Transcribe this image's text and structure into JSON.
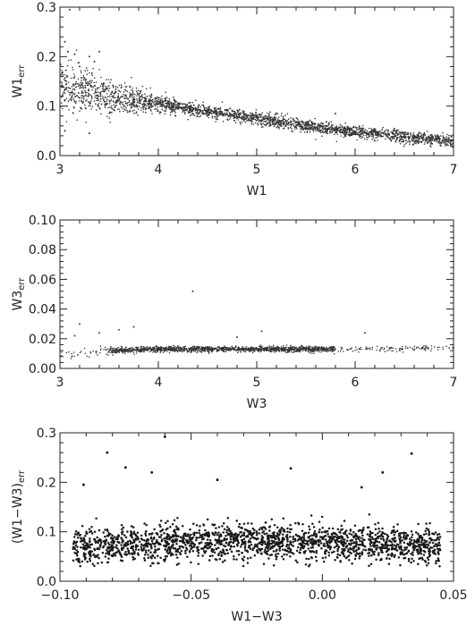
{
  "chart_data": [
    {
      "type": "scatter",
      "x_field": "W1",
      "y_field": "W1_err",
      "xlabel": "W1",
      "ylabel_main": "W1",
      "ylabel_sub": "err",
      "xlim": [
        3,
        7
      ],
      "ylim": [
        0.0,
        0.3
      ],
      "xticks": [
        3,
        4,
        5,
        6,
        7
      ],
      "yticks": [
        0.0,
        0.1,
        0.2,
        0.3
      ],
      "xtick_labels": [
        "3",
        "4",
        "5",
        "6",
        "7"
      ],
      "ytick_labels": [
        "0.0",
        "0.1",
        "0.2",
        "0.3"
      ],
      "grid": false,
      "trend": {
        "description": "dense band decreasing with W1",
        "points": [
          {
            "x": 3.0,
            "y": 0.14
          },
          {
            "x": 3.5,
            "y": 0.12
          },
          {
            "x": 4.0,
            "y": 0.105
          },
          {
            "x": 4.5,
            "y": 0.09
          },
          {
            "x": 5.0,
            "y": 0.075
          },
          {
            "x": 5.5,
            "y": 0.06
          },
          {
            "x": 6.0,
            "y": 0.048
          },
          {
            "x": 6.5,
            "y": 0.038
          },
          {
            "x": 7.0,
            "y": 0.03
          }
        ]
      },
      "notable_points": [
        {
          "x": 3.05,
          "y": 0.23
        },
        {
          "x": 3.08,
          "y": 0.21
        },
        {
          "x": 3.1,
          "y": 0.295
        },
        {
          "x": 3.15,
          "y": 0.205
        },
        {
          "x": 3.2,
          "y": 0.18
        },
        {
          "x": 3.3,
          "y": 0.2
        },
        {
          "x": 3.35,
          "y": 0.19
        },
        {
          "x": 3.4,
          "y": 0.21
        },
        {
          "x": 3.05,
          "y": 0.05
        },
        {
          "x": 3.3,
          "y": 0.045
        },
        {
          "x": 5.8,
          "y": 0.085
        }
      ]
    },
    {
      "type": "scatter",
      "x_field": "W3",
      "y_field": "W3_err",
      "xlabel": "W3",
      "ylabel_main": "W3",
      "ylabel_sub": "err",
      "xlim": [
        3,
        7
      ],
      "ylim": [
        0.0,
        0.1
      ],
      "xticks": [
        3,
        4,
        5,
        6,
        7
      ],
      "yticks": [
        0.0,
        0.02,
        0.04,
        0.06,
        0.08,
        0.1
      ],
      "xtick_labels": [
        "3",
        "4",
        "5",
        "6",
        "7"
      ],
      "ytick_labels": [
        "0.00",
        "0.02",
        "0.04",
        "0.06",
        "0.08",
        "0.10"
      ],
      "grid": false,
      "trend": {
        "description": "flat band near 0.013",
        "points": [
          {
            "x": 3.0,
            "y": 0.009
          },
          {
            "x": 3.5,
            "y": 0.012
          },
          {
            "x": 4.0,
            "y": 0.013
          },
          {
            "x": 5.0,
            "y": 0.013
          },
          {
            "x": 6.0,
            "y": 0.013
          },
          {
            "x": 7.0,
            "y": 0.014
          }
        ]
      },
      "notable_points": [
        {
          "x": 4.35,
          "y": 0.052
        },
        {
          "x": 3.2,
          "y": 0.03
        },
        {
          "x": 3.6,
          "y": 0.026
        },
        {
          "x": 3.75,
          "y": 0.028
        },
        {
          "x": 3.4,
          "y": 0.024
        },
        {
          "x": 5.05,
          "y": 0.025
        },
        {
          "x": 6.1,
          "y": 0.024
        },
        {
          "x": 4.8,
          "y": 0.021
        },
        {
          "x": 3.15,
          "y": 0.022
        }
      ]
    },
    {
      "type": "scatter",
      "x_field": "W1-W3",
      "y_field": "(W1-W3)_err",
      "xlabel": "W1−W3",
      "ylabel_main": "(W1−W3)",
      "ylabel_sub": "err",
      "xlim": [
        -0.1,
        0.05
      ],
      "ylim": [
        0.0,
        0.3
      ],
      "xticks": [
        -0.1,
        -0.05,
        0.0,
        0.05
      ],
      "yticks": [
        0.0,
        0.1,
        0.2,
        0.3
      ],
      "xtick_labels": [
        "−0.10",
        "−0.05",
        "0.00",
        "0.05"
      ],
      "ytick_labels": [
        "0.0",
        "0.1",
        "0.2",
        "0.3"
      ],
      "grid": false,
      "trend": {
        "description": "broad band centered near 0.08 across all W1-W3",
        "points": [
          {
            "x": -0.095,
            "y": 0.07
          },
          {
            "x": -0.05,
            "y": 0.08
          },
          {
            "x": -0.02,
            "y": 0.082
          },
          {
            "x": 0.0,
            "y": 0.08
          },
          {
            "x": 0.045,
            "y": 0.07
          }
        ]
      },
      "notable_points": [
        {
          "x": -0.06,
          "y": 0.292
        },
        {
          "x": -0.082,
          "y": 0.26
        },
        {
          "x": 0.034,
          "y": 0.258
        },
        {
          "x": -0.075,
          "y": 0.23
        },
        {
          "x": -0.091,
          "y": 0.195
        },
        {
          "x": -0.065,
          "y": 0.22
        },
        {
          "x": -0.012,
          "y": 0.228
        },
        {
          "x": 0.023,
          "y": 0.22
        },
        {
          "x": -0.04,
          "y": 0.205
        },
        {
          "x": 0.015,
          "y": 0.19
        }
      ]
    }
  ]
}
